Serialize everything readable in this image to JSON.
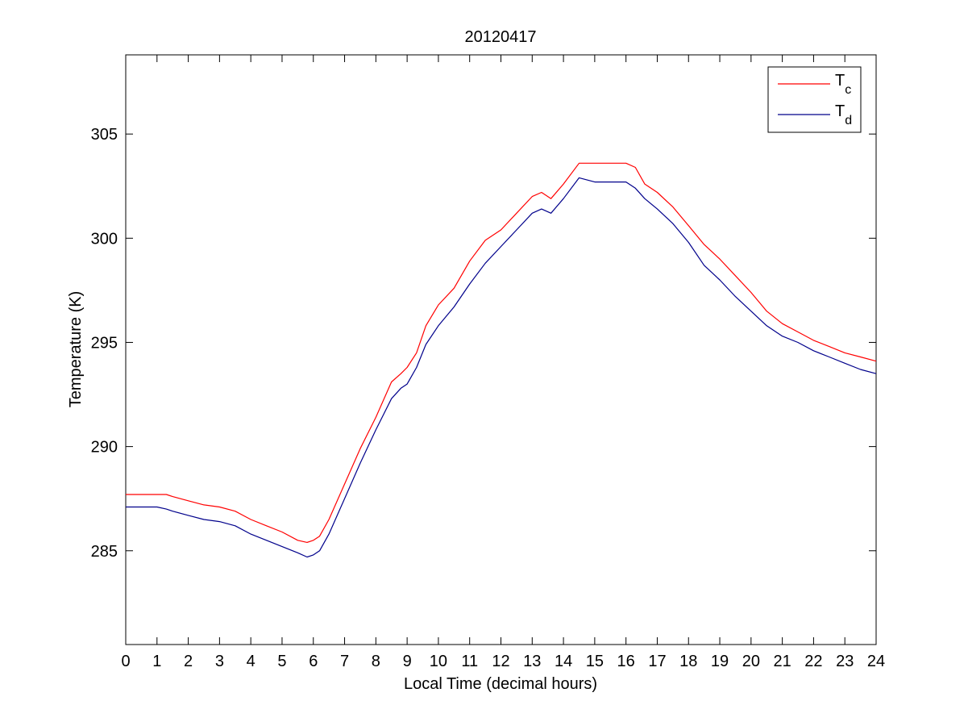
{
  "chart_data": {
    "type": "line",
    "title": "20120417",
    "xlabel": "Local Time (decimal hours)",
    "ylabel": "Temperature (K)",
    "xlim": [
      0,
      24
    ],
    "ylim": [
      280.5,
      308.8
    ],
    "xticks": [
      0,
      1,
      2,
      3,
      4,
      5,
      6,
      7,
      8,
      9,
      10,
      11,
      12,
      13,
      14,
      15,
      16,
      17,
      18,
      19,
      20,
      21,
      22,
      23,
      24
    ],
    "xtick_labels": [
      "0",
      "1",
      "2",
      "3",
      "4",
      "5",
      "6",
      "7",
      "8",
      "9",
      "10",
      "11",
      "12",
      "13",
      "14",
      "15",
      "16",
      "17",
      "18",
      "19",
      "20",
      "21",
      "22",
      "23",
      "24"
    ],
    "yticks": [
      285,
      290,
      295,
      300,
      305
    ],
    "ytick_labels": [
      "285",
      "290",
      "295",
      "300",
      "305"
    ],
    "grid": false,
    "legend_position": "top-right",
    "series": [
      {
        "name": "Tc",
        "legend_main": "T",
        "legend_sub": "c",
        "color": "#ff0000",
        "x": [
          0,
          0.5,
          1,
          1.3,
          1.5,
          2,
          2.5,
          3,
          3.5,
          4,
          4.5,
          5,
          5.5,
          5.8,
          6,
          6.2,
          6.5,
          7,
          7.5,
          8,
          8.5,
          8.8,
          9,
          9.3,
          9.6,
          10,
          10.5,
          11,
          11.5,
          12,
          12.5,
          13,
          13.3,
          13.6,
          14,
          14.5,
          15,
          15.5,
          16,
          16.3,
          16.6,
          17,
          17.5,
          18,
          18.5,
          19,
          19.5,
          20,
          20.5,
          21,
          21.5,
          22,
          22.5,
          23,
          23.5,
          24
        ],
        "y": [
          287.7,
          287.7,
          287.7,
          287.7,
          287.6,
          287.4,
          287.2,
          287.1,
          286.9,
          286.5,
          286.2,
          285.9,
          285.5,
          285.4,
          285.5,
          285.7,
          286.5,
          288.2,
          289.9,
          291.4,
          293.1,
          293.5,
          293.8,
          294.5,
          295.8,
          296.8,
          297.6,
          298.9,
          299.9,
          300.4,
          301.2,
          302.0,
          302.2,
          301.9,
          302.6,
          303.6,
          303.6,
          303.6,
          303.6,
          303.4,
          302.6,
          302.2,
          301.5,
          300.6,
          299.7,
          299.0,
          298.2,
          297.4,
          296.5,
          295.9,
          295.5,
          295.1,
          294.8,
          294.5,
          294.3,
          294.1
        ]
      },
      {
        "name": "Td",
        "legend_main": "T",
        "legend_sub": "d",
        "color": "#00008b",
        "x": [
          0,
          0.5,
          1,
          1.3,
          1.5,
          2,
          2.5,
          3,
          3.5,
          4,
          4.5,
          5,
          5.5,
          5.8,
          6,
          6.2,
          6.5,
          7,
          7.5,
          8,
          8.5,
          8.8,
          9,
          9.3,
          9.6,
          10,
          10.5,
          11,
          11.5,
          12,
          12.5,
          13,
          13.3,
          13.6,
          14,
          14.5,
          15,
          15.5,
          16,
          16.3,
          16.6,
          17,
          17.5,
          18,
          18.5,
          19,
          19.5,
          20,
          20.5,
          21,
          21.5,
          22,
          22.5,
          23,
          23.5,
          24
        ],
        "y": [
          287.1,
          287.1,
          287.1,
          287.0,
          286.9,
          286.7,
          286.5,
          286.4,
          286.2,
          285.8,
          285.5,
          285.2,
          284.9,
          284.7,
          284.8,
          285.0,
          285.8,
          287.5,
          289.2,
          290.8,
          292.3,
          292.8,
          293.0,
          293.8,
          294.9,
          295.8,
          296.7,
          297.8,
          298.8,
          299.6,
          300.4,
          301.2,
          301.4,
          301.2,
          301.9,
          302.9,
          302.7,
          302.7,
          302.7,
          302.4,
          301.9,
          301.4,
          300.7,
          299.8,
          298.7,
          298.0,
          297.2,
          296.5,
          295.8,
          295.3,
          295.0,
          294.6,
          294.3,
          294.0,
          293.7,
          293.5
        ]
      }
    ]
  }
}
